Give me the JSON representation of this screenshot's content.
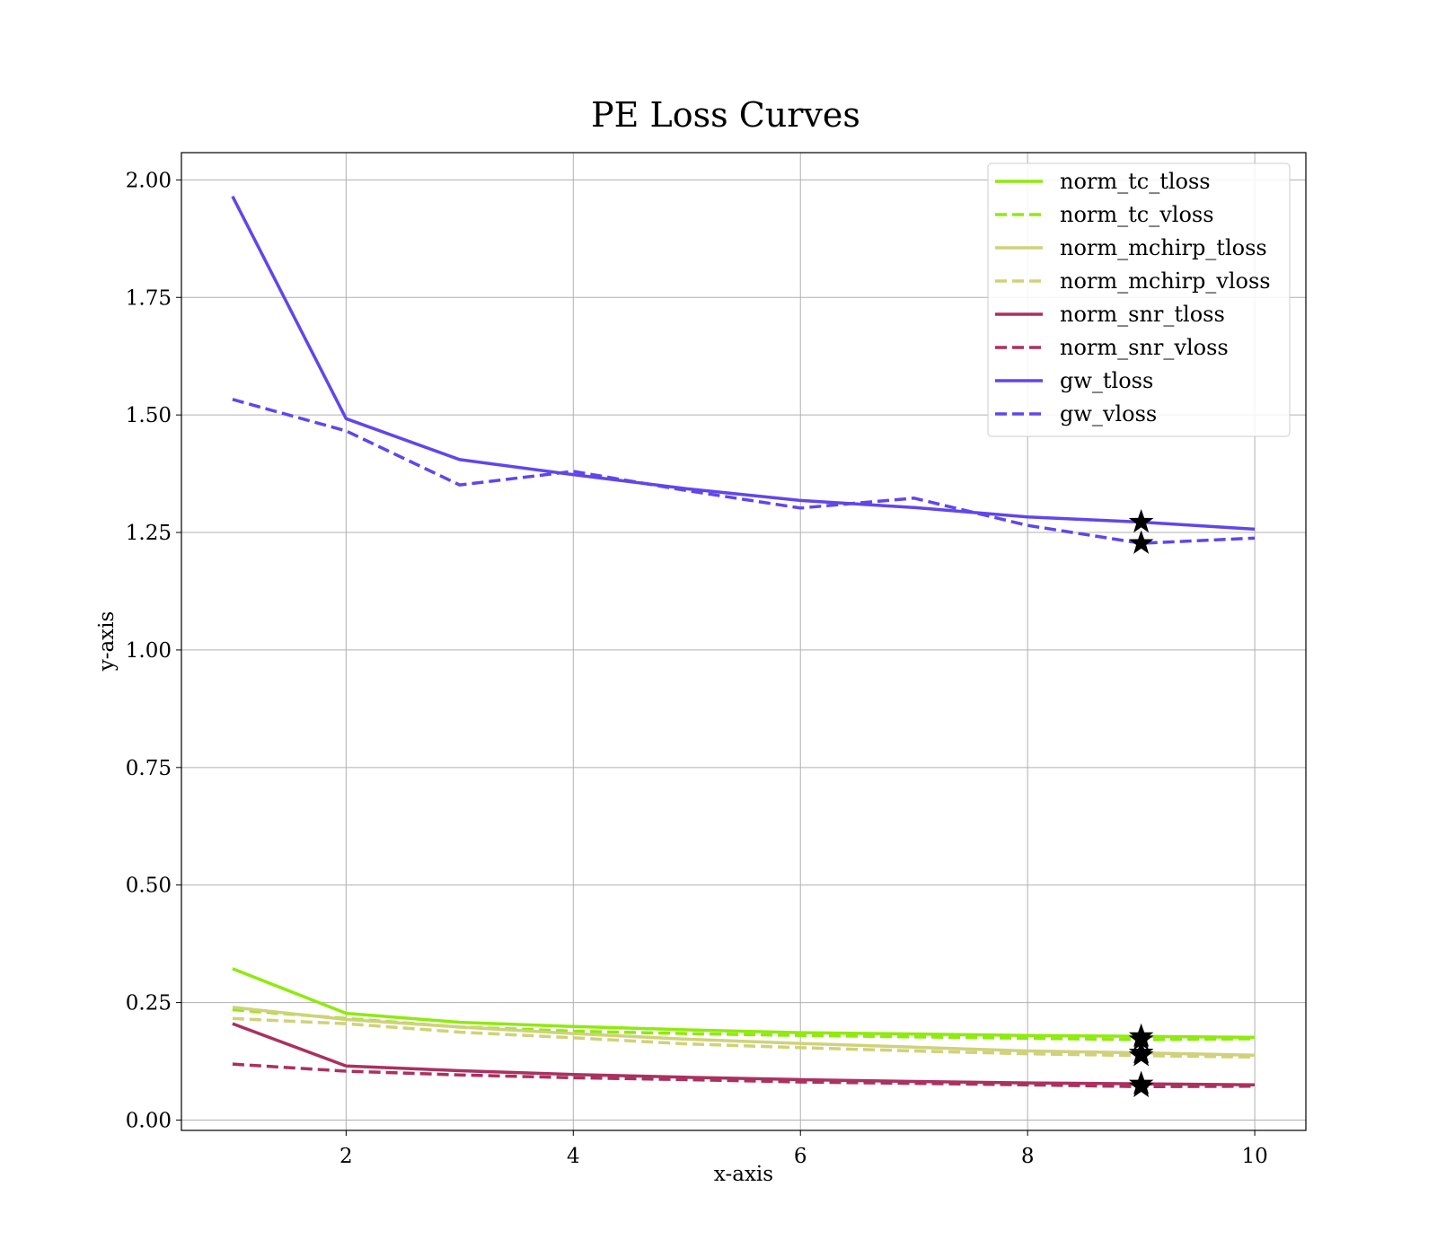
{
  "chart_data": {
    "type": "line",
    "title": "PE Loss Curves",
    "xlabel": "x-axis",
    "ylabel": "y-axis",
    "xlim": [
      0.55,
      10.45
    ],
    "ylim": [
      -0.022,
      2.058
    ],
    "xticks": [
      2,
      4,
      6,
      8,
      10
    ],
    "yticks": [
      0.0,
      0.25,
      0.5,
      0.75,
      1.0,
      1.25,
      1.5,
      1.75,
      2.0
    ],
    "xtick_labels": [
      "2",
      "4",
      "6",
      "8",
      "10"
    ],
    "ytick_labels": [
      "0.00",
      "0.25",
      "0.50",
      "0.75",
      "1.00",
      "1.25",
      "1.50",
      "1.75",
      "2.00"
    ],
    "grid": true,
    "legend_position": "top-right",
    "x": [
      1,
      2,
      3,
      4,
      5,
      6,
      7,
      8,
      9,
      10
    ],
    "series": [
      {
        "name": "norm_tc_tloss",
        "color": "#8fea0e",
        "style": "solid",
        "values": [
          0.322,
          0.227,
          0.208,
          0.199,
          0.192,
          0.186,
          0.183,
          0.18,
          0.178,
          0.176
        ],
        "best_marker": {
          "x": 9,
          "y": 0.178
        }
      },
      {
        "name": "norm_tc_vloss",
        "color": "#8fea0e",
        "style": "dashed",
        "values": [
          0.235,
          0.216,
          0.198,
          0.189,
          0.184,
          0.18,
          0.177,
          0.174,
          0.171,
          0.173
        ],
        "best_marker": {
          "x": 9,
          "y": 0.171
        }
      },
      {
        "name": "norm_mchirp_tloss",
        "color": "#cfd27a",
        "style": "solid",
        "values": [
          0.24,
          0.214,
          0.198,
          0.184,
          0.172,
          0.163,
          0.155,
          0.147,
          0.143,
          0.138
        ],
        "best_marker": {
          "x": 9,
          "y": 0.143
        }
      },
      {
        "name": "norm_mchirp_vloss",
        "color": "#cfd27a",
        "style": "dashed",
        "values": [
          0.216,
          0.205,
          0.187,
          0.175,
          0.162,
          0.154,
          0.147,
          0.141,
          0.137,
          0.134
        ],
        "best_marker": {
          "x": 9,
          "y": 0.137
        }
      },
      {
        "name": "norm_snr_tloss",
        "color": "#aa3160",
        "style": "solid",
        "values": [
          0.205,
          0.115,
          0.105,
          0.097,
          0.091,
          0.086,
          0.082,
          0.079,
          0.077,
          0.075
        ],
        "best_marker": {
          "x": 9,
          "y": 0.077
        }
      },
      {
        "name": "norm_snr_vloss",
        "color": "#aa3160",
        "style": "dashed",
        "values": [
          0.119,
          0.104,
          0.096,
          0.09,
          0.086,
          0.081,
          0.078,
          0.075,
          0.071,
          0.072
        ],
        "best_marker": {
          "x": 9,
          "y": 0.071
        }
      },
      {
        "name": "gw_tloss",
        "color": "#6046ec",
        "style": "solid",
        "values": [
          1.965,
          1.492,
          1.405,
          1.373,
          1.343,
          1.318,
          1.303,
          1.283,
          1.272,
          1.257
        ],
        "best_marker": {
          "x": 9,
          "y": 1.272
        }
      },
      {
        "name": "gw_vloss",
        "color": "#6046ec",
        "style": "dashed",
        "values": [
          1.533,
          1.466,
          1.351,
          1.38,
          1.339,
          1.302,
          1.323,
          1.265,
          1.227,
          1.238
        ],
        "best_marker": {
          "x": 9,
          "y": 1.227
        }
      }
    ]
  }
}
